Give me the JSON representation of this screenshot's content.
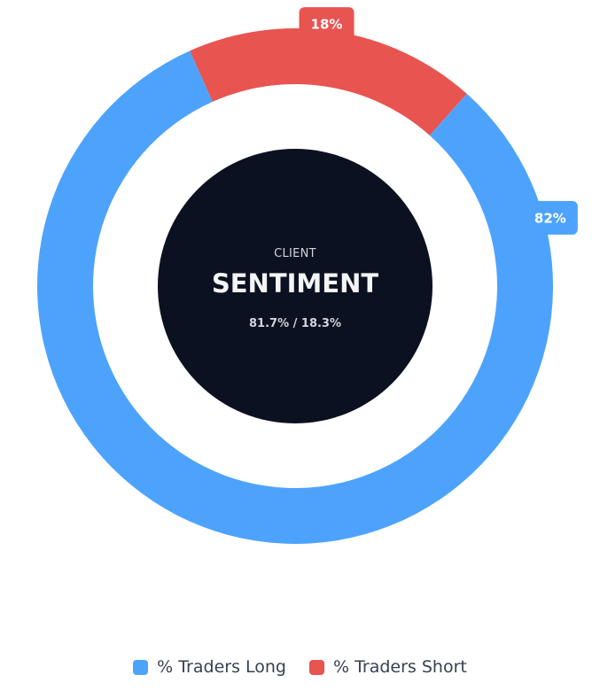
{
  "chart_data": {
    "type": "pie",
    "variant": "donut",
    "series": [
      {
        "name": "% Traders Long",
        "value": 81.7,
        "label": "82%",
        "color": "#4da3fc"
      },
      {
        "name": "% Traders Short",
        "value": 18.3,
        "label": "18%",
        "color": "#e85450"
      }
    ],
    "center": {
      "caption": "CLIENT",
      "title": "SENTIMENT",
      "ratio": "81.7% / 18.3%",
      "background": "#0b1120"
    },
    "legend_position": "bottom"
  }
}
